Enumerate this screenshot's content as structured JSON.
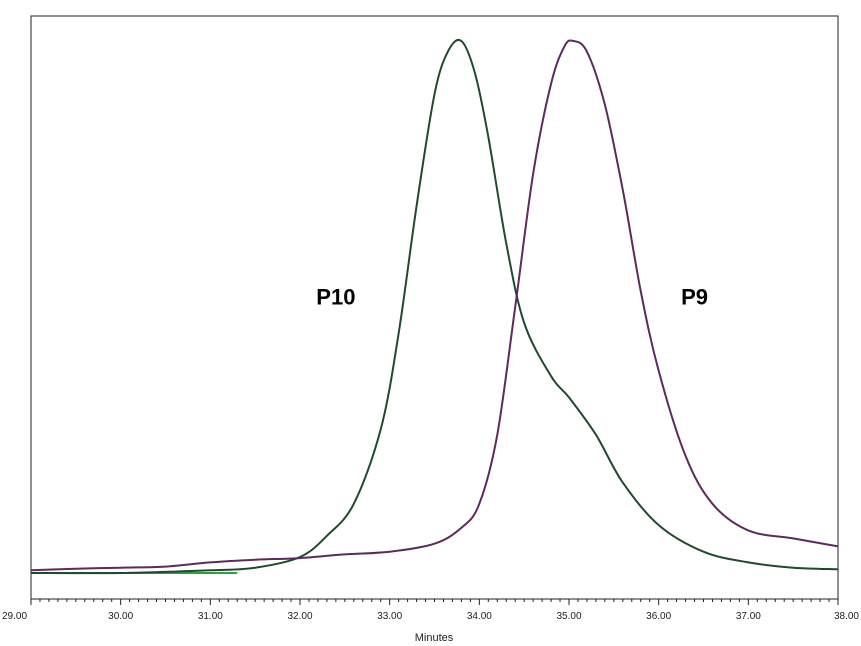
{
  "chart_data": {
    "type": "line",
    "title": "",
    "xlabel": "Minutes",
    "ylabel": "",
    "xlim": [
      29.0,
      38.0
    ],
    "ylim": [
      0,
      1.08
    ],
    "grid": false,
    "x_ticks": [
      "29.00",
      "30.00",
      "31.00",
      "32.00",
      "33.00",
      "34.00",
      "35.00",
      "36.00",
      "37.00",
      "38.00"
    ],
    "series": [
      {
        "name": "P10",
        "color": "#1f4a2e",
        "baseline_color": "#2e9e3e",
        "x": [
          29.0,
          30.0,
          31.0,
          31.5,
          32.0,
          32.3,
          32.6,
          32.9,
          33.1,
          33.3,
          33.5,
          33.65,
          33.8,
          33.95,
          34.1,
          34.3,
          34.5,
          34.8,
          35.0,
          35.3,
          35.6,
          36.0,
          36.5,
          37.0,
          37.5,
          38.0
        ],
        "y": [
          0.0,
          0.0,
          0.005,
          0.01,
          0.03,
          0.07,
          0.13,
          0.27,
          0.45,
          0.69,
          0.9,
          0.98,
          1.0,
          0.94,
          0.82,
          0.62,
          0.47,
          0.37,
          0.33,
          0.26,
          0.17,
          0.09,
          0.04,
          0.02,
          0.01,
          0.007
        ]
      },
      {
        "name": "P9",
        "color": "#5e2a5e",
        "x": [
          29.0,
          29.5,
          30.0,
          30.5,
          31.0,
          31.5,
          32.0,
          32.5,
          33.0,
          33.5,
          33.8,
          34.0,
          34.2,
          34.4,
          34.6,
          34.8,
          34.95,
          35.05,
          35.2,
          35.4,
          35.6,
          35.8,
          36.0,
          36.3,
          36.6,
          37.0,
          37.5,
          38.0
        ],
        "y": [
          0.005,
          0.008,
          0.01,
          0.012,
          0.02,
          0.025,
          0.028,
          0.035,
          0.04,
          0.055,
          0.085,
          0.13,
          0.26,
          0.5,
          0.75,
          0.92,
          0.99,
          1.0,
          0.98,
          0.88,
          0.72,
          0.53,
          0.38,
          0.22,
          0.13,
          0.08,
          0.065,
          0.05
        ]
      }
    ],
    "annotations": [
      {
        "text": "P10",
        "x": 32.4,
        "y": 0.52
      },
      {
        "text": "P9",
        "x": 36.4,
        "y": 0.52
      }
    ]
  }
}
